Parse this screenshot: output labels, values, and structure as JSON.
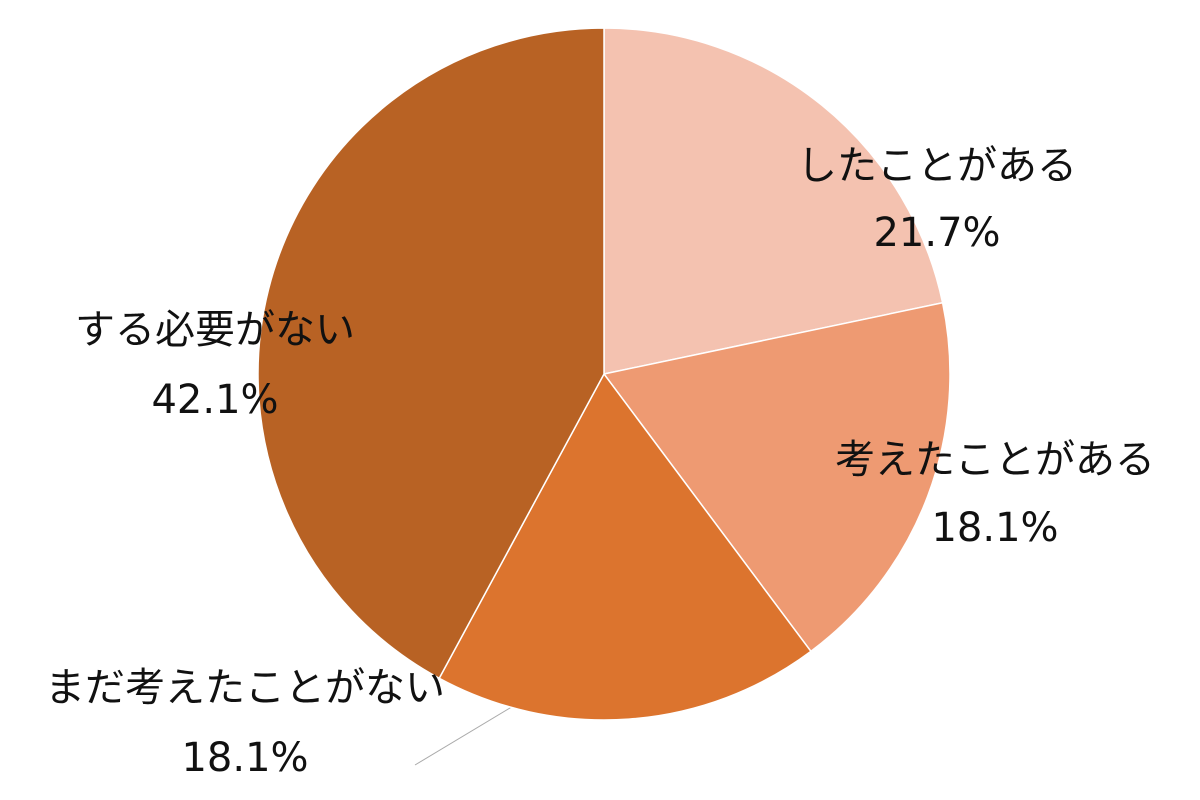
{
  "chart_data": {
    "type": "pie",
    "categories": [
      "したことがある",
      "考えたことがある",
      "まだ考えたことがない",
      "する必要がない"
    ],
    "values": [
      21.7,
      18.1,
      18.1,
      42.1
    ],
    "value_labels": [
      "21.7%",
      "18.1%",
      "18.1%",
      "42.1%"
    ],
    "colors": [
      "#f4c2b0",
      "#ee9a72",
      "#dc742e",
      "#b86224"
    ]
  }
}
